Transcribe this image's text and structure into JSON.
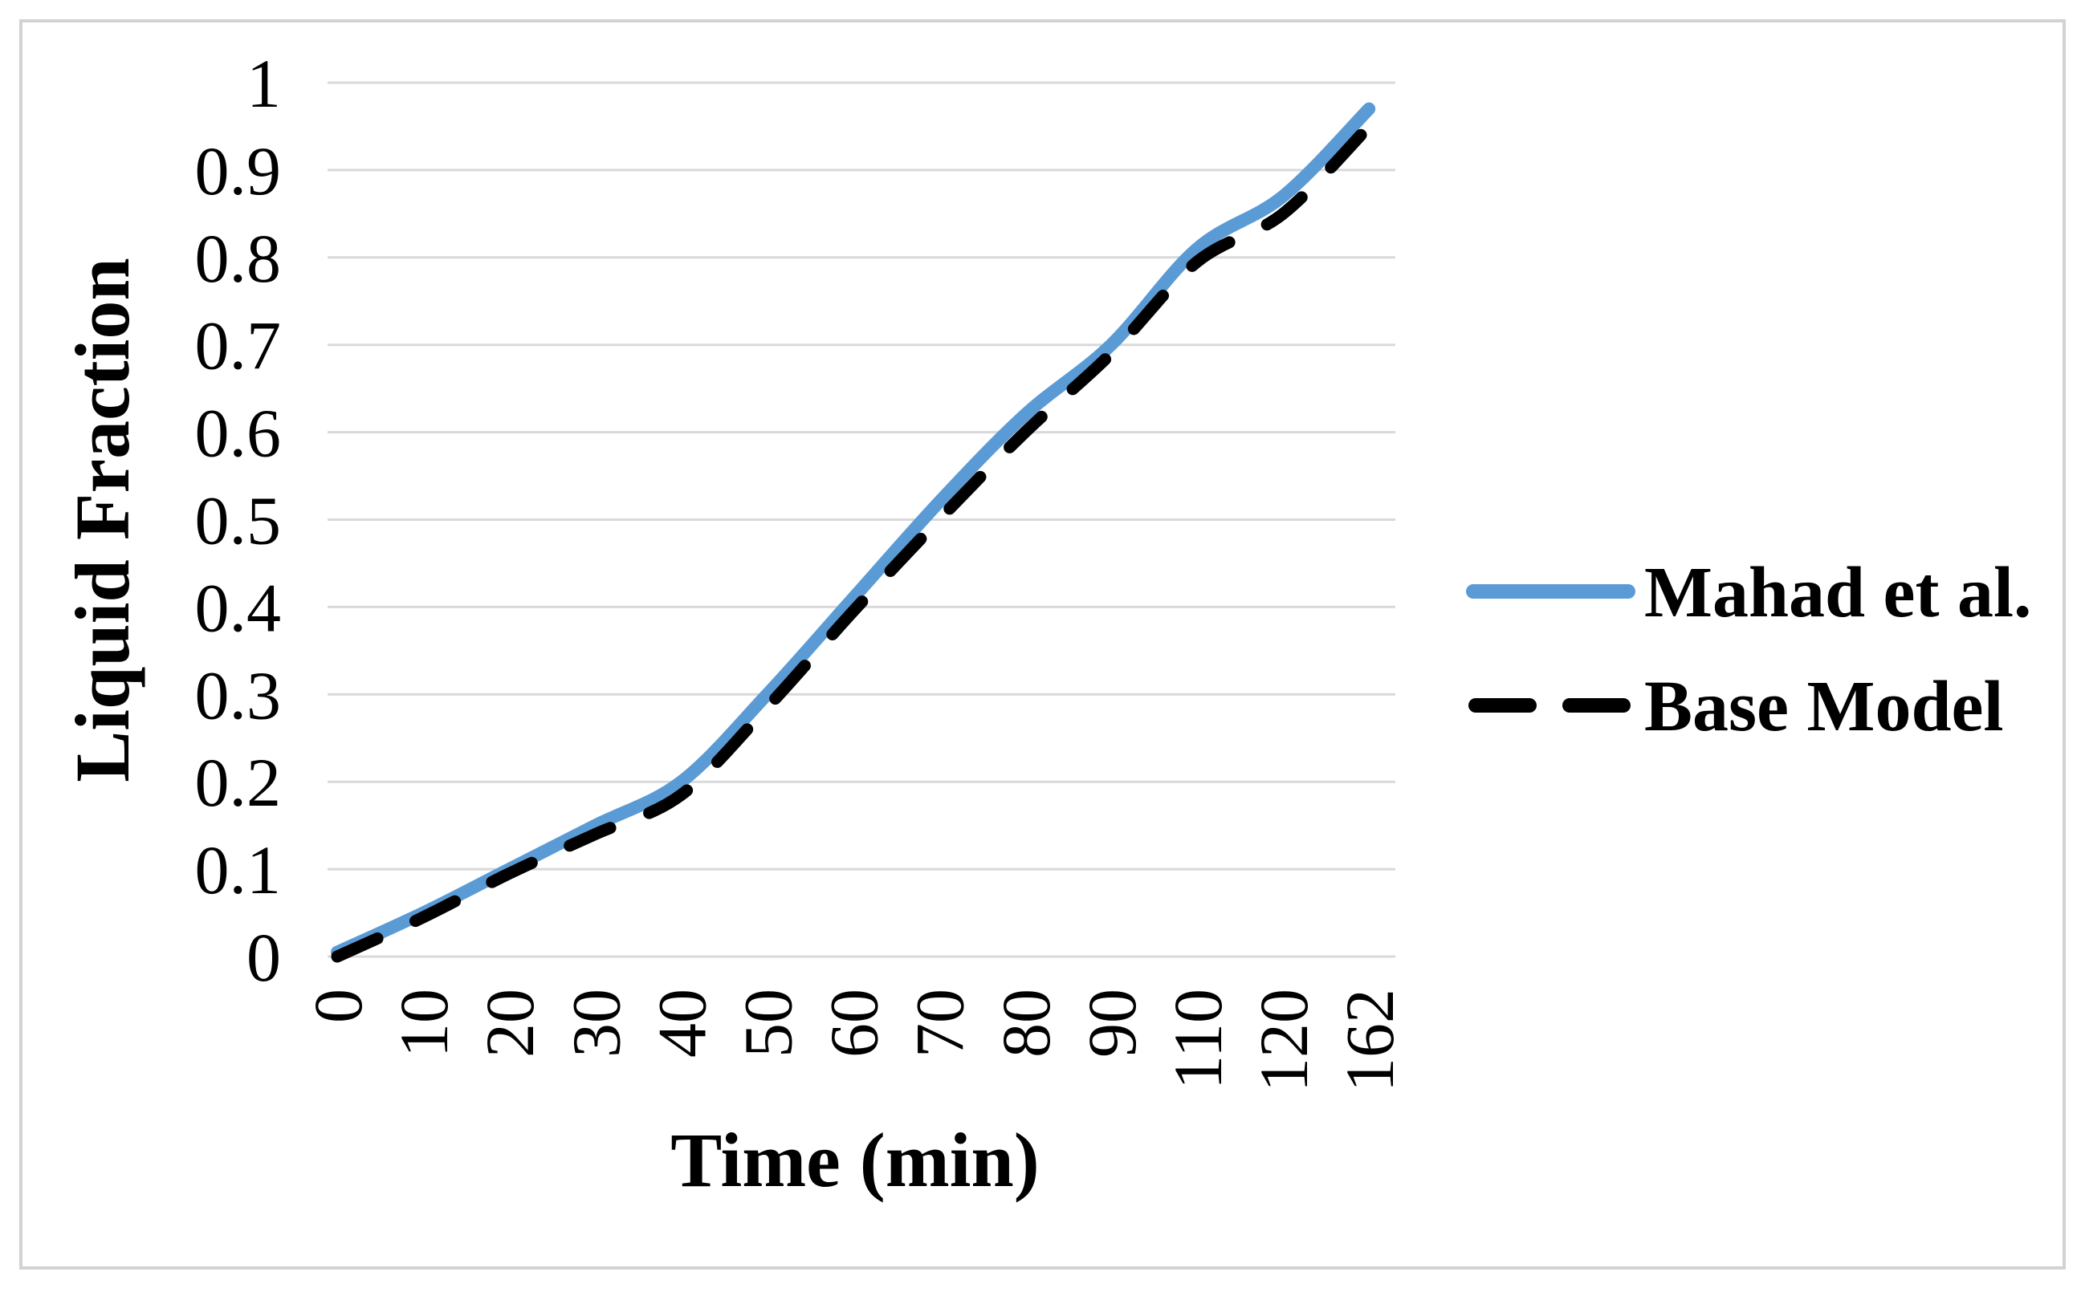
{
  "figure": {
    "background": "#FFFFFF",
    "border_color": "#D2D2D2"
  },
  "chart_data": {
    "type": "line",
    "title": "",
    "xlabel": "Time (min)",
    "ylabel": "Liquid Fraction",
    "categories": [
      "0",
      "10",
      "20",
      "30",
      "40",
      "50",
      "60",
      "70",
      "80",
      "90",
      "110",
      "120",
      "162"
    ],
    "y_tick_labels_top_down": [
      "1",
      "0.9",
      "0.8",
      "0.7",
      "0.6",
      "0.5",
      "0.4",
      "0.3",
      "0.2",
      "0.1",
      "0"
    ],
    "ylim": [
      0,
      1
    ],
    "y_step": 0.1,
    "grid": true,
    "gridline_color": "#D9D9D9",
    "legend_position": "right",
    "series": [
      {
        "name": "Mahad et al.",
        "color": "#5B9BD5",
        "style": "solid",
        "values": [
          0.005,
          0.05,
          0.1,
          0.15,
          0.2,
          0.3,
          0.41,
          0.52,
          0.62,
          0.7,
          0.81,
          0.87,
          0.97
        ]
      },
      {
        "name": "Base Model",
        "color": "#000000",
        "style": "dashed",
        "values": [
          0.0,
          0.045,
          0.095,
          0.14,
          0.185,
          0.285,
          0.395,
          0.5,
          0.6,
          0.69,
          0.795,
          0.85,
          0.95
        ]
      }
    ]
  }
}
